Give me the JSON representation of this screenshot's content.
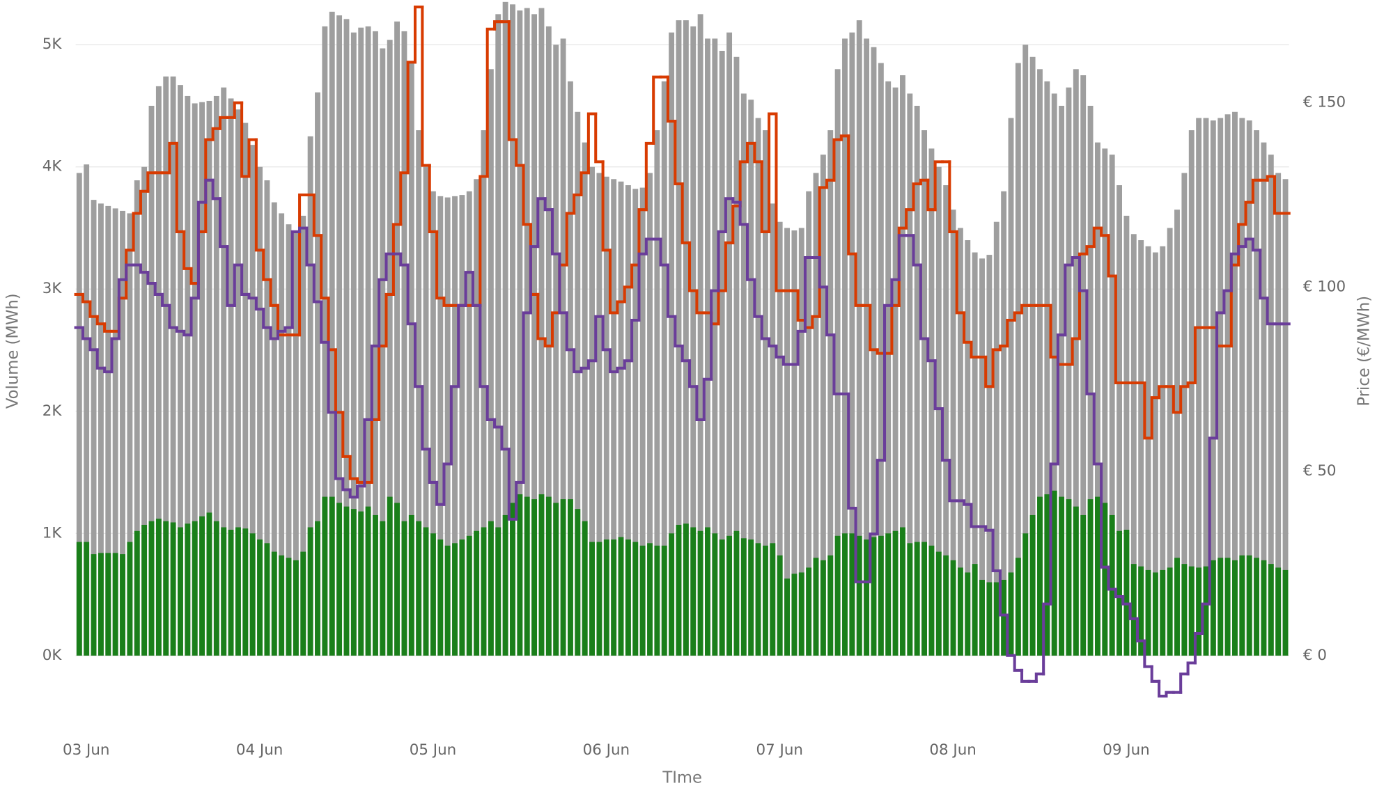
{
  "chart_data": {
    "type": "bar",
    "x_label": "TIme",
    "y_label": "Volume (MWh)",
    "y2_label": "Price (€/MWh)",
    "categories": [
      "03 Jun",
      null,
      null,
      null,
      null,
      null,
      null,
      null,
      null,
      null,
      null,
      null,
      null,
      null,
      null,
      null,
      null,
      null,
      null,
      null,
      null,
      null,
      null,
      null,
      "04 Jun",
      null,
      null,
      null,
      null,
      null,
      null,
      null,
      null,
      null,
      null,
      null,
      null,
      null,
      null,
      null,
      null,
      null,
      null,
      null,
      null,
      null,
      null,
      null,
      "05 Jun",
      null,
      null,
      null,
      null,
      null,
      null,
      null,
      null,
      null,
      null,
      null,
      null,
      null,
      null,
      null,
      null,
      null,
      null,
      null,
      null,
      null,
      null,
      null,
      "06 Jun",
      null,
      null,
      null,
      null,
      null,
      null,
      null,
      null,
      null,
      null,
      null,
      null,
      null,
      null,
      null,
      null,
      null,
      null,
      null,
      null,
      null,
      null,
      null,
      "07 Jun",
      null,
      null,
      null,
      null,
      null,
      null,
      null,
      null,
      null,
      null,
      null,
      null,
      null,
      null,
      null,
      null,
      null,
      null,
      null,
      null,
      null,
      null,
      null,
      "08 Jun",
      null,
      null,
      null,
      null,
      null,
      null,
      null,
      null,
      null,
      null,
      null,
      null,
      null,
      null,
      null,
      null,
      null,
      null,
      null,
      null,
      null,
      null,
      null,
      "09 Jun",
      null,
      null,
      null,
      null,
      null,
      null,
      null,
      null,
      null,
      null,
      null,
      null,
      null,
      null,
      null,
      null,
      null,
      null,
      null,
      null,
      null,
      null,
      null
    ],
    "ylim": [
      -380,
      5330
    ],
    "yticks": [
      {
        "value": 0,
        "label": "0K"
      },
      {
        "value": 1000,
        "label": "1K"
      },
      {
        "value": 2000,
        "label": "2K"
      },
      {
        "value": 3000,
        "label": "3K"
      },
      {
        "value": 4000,
        "label": "4K"
      },
      {
        "value": 5000,
        "label": "5K"
      }
    ],
    "y2lim": [
      -12.6,
      176.7
    ],
    "y2ticks": [
      {
        "value": 0,
        "label": "€ 0"
      },
      {
        "value": 50,
        "label": "€ 50"
      },
      {
        "value": 100,
        "label": "€ 100"
      },
      {
        "value": 150,
        "label": "€ 150"
      }
    ],
    "grid": true,
    "series": [
      {
        "type": "bar",
        "color": "#9e9e9e",
        "values": [
          3950,
          4020,
          3730,
          3700,
          3680,
          3660,
          3640,
          3620,
          3890,
          4000,
          4500,
          4660,
          4740,
          4740,
          4670,
          4580,
          4520,
          4530,
          4540,
          4580,
          4650,
          4560,
          4470,
          4360,
          4180,
          4000,
          3890,
          3710,
          3620,
          3530,
          3460,
          3600,
          4250,
          4610,
          5150,
          5270,
          5240,
          5210,
          5100,
          5140,
          5150,
          5110,
          4970,
          5040,
          5190,
          5110,
          4860,
          4300,
          4000,
          3800,
          3760,
          3750,
          3760,
          3770,
          3800,
          3900,
          4300,
          4800,
          5250,
          5350,
          5330,
          5280,
          5300,
          5250,
          5300,
          5150,
          5000,
          5050,
          4700,
          4450,
          4200,
          4000,
          3950,
          3920,
          3900,
          3880,
          3850,
          3820,
          3830,
          3950,
          4300,
          4700,
          5100,
          5200,
          5200,
          5150,
          5250,
          5050,
          5050,
          4950,
          5100,
          4900,
          4600,
          4550,
          4400,
          4300,
          3700,
          3550,
          3500,
          3480,
          3500,
          3800,
          3950,
          4100,
          4300,
          4800,
          5050,
          5100,
          5200,
          5050,
          4980,
          4850,
          4700,
          4650,
          4750,
          4600,
          4500,
          4300,
          4150,
          4000,
          3850,
          3650,
          3500,
          3400,
          3300,
          3250,
          3280,
          3550,
          3800,
          4400,
          4850,
          5000,
          4900,
          4800,
          4700,
          4600,
          4500,
          4650,
          4800,
          4750,
          4500,
          4200,
          4150,
          4100,
          3850,
          3600,
          3450,
          3400,
          3350,
          3300,
          3350,
          3500,
          3650,
          3950,
          4300,
          4400,
          4400,
          4380,
          4400,
          4430,
          4450,
          4400,
          4380,
          4300,
          4200,
          4100,
          3950,
          3900
        ]
      },
      {
        "type": "bar",
        "color": "#1a7f1a",
        "values": [
          930,
          930,
          830,
          840,
          840,
          840,
          830,
          930,
          1020,
          1070,
          1100,
          1120,
          1100,
          1090,
          1050,
          1080,
          1100,
          1140,
          1170,
          1100,
          1050,
          1030,
          1050,
          1040,
          1000,
          950,
          920,
          850,
          820,
          800,
          780,
          850,
          1050,
          1100,
          1300,
          1300,
          1250,
          1220,
          1200,
          1180,
          1220,
          1150,
          1100,
          1300,
          1250,
          1100,
          1150,
          1100,
          1050,
          1000,
          950,
          900,
          920,
          950,
          980,
          1020,
          1050,
          1100,
          1050,
          1150,
          1250,
          1320,
          1300,
          1280,
          1320,
          1300,
          1250,
          1280,
          1280,
          1200,
          1100,
          930,
          930,
          950,
          950,
          970,
          950,
          930,
          900,
          920,
          900,
          900,
          1000,
          1070,
          1080,
          1050,
          1020,
          1050,
          1000,
          950,
          980,
          1020,
          960,
          950,
          920,
          900,
          920,
          820,
          630,
          670,
          680,
          720,
          800,
          780,
          820,
          980,
          1000,
          1000,
          980,
          950,
          970,
          980,
          1000,
          1020,
          1050,
          920,
          930,
          930,
          900,
          850,
          820,
          780,
          720,
          680,
          750,
          620,
          600,
          600,
          620,
          680,
          800,
          1000,
          1150,
          1300,
          1320,
          1350,
          1300,
          1280,
          1220,
          1150,
          1280,
          1300,
          1250,
          1150,
          1020,
          1030,
          750,
          730,
          700,
          680,
          700,
          720,
          800,
          750,
          730,
          720,
          730,
          780,
          800,
          800,
          780,
          820,
          820,
          800,
          780,
          750,
          720,
          700
        ]
      },
      {
        "type": "line",
        "axis": "y2",
        "color": "#d83b01",
        "values": [
          98,
          96,
          92,
          90,
          88,
          88,
          97,
          110,
          120,
          126,
          131,
          131,
          131,
          139,
          115,
          105,
          101,
          115,
          140,
          143,
          146,
          146,
          150,
          130,
          140,
          110,
          102,
          95,
          87,
          87,
          87,
          125,
          125,
          114,
          97,
          83,
          66,
          54,
          48,
          47,
          47,
          64,
          84,
          98,
          117,
          131,
          161,
          176,
          133,
          115,
          97,
          95,
          95,
          95,
          95,
          95,
          130,
          170,
          172,
          172,
          140,
          133,
          117,
          98,
          86,
          84,
          93,
          106,
          120,
          125,
          131,
          147,
          134,
          110,
          93,
          96,
          100,
          106,
          121,
          139,
          157,
          157,
          145,
          128,
          112,
          99,
          93,
          93,
          90,
          99,
          112,
          122,
          134,
          139,
          134,
          115,
          147,
          99,
          99,
          99,
          91,
          89,
          92,
          127,
          129,
          140,
          141,
          109,
          95,
          95,
          83,
          82,
          82,
          95,
          116,
          121,
          128,
          129,
          121,
          134,
          134,
          115,
          93,
          85,
          81,
          81,
          73,
          83,
          84,
          91,
          93,
          95,
          95,
          95,
          95,
          81,
          79,
          79,
          86,
          109,
          111,
          116,
          114,
          103,
          74,
          74,
          74,
          74,
          59,
          70,
          73,
          73,
          66,
          73,
          74,
          89,
          89,
          89,
          84,
          84,
          106,
          117,
          123,
          129,
          129,
          130,
          120,
          120
        ]
      },
      {
        "type": "line",
        "axis": "y2",
        "color": "#6a3d9a",
        "values": [
          89,
          86,
          83,
          78,
          77,
          86,
          102,
          106,
          106,
          104,
          101,
          98,
          95,
          89,
          88,
          87,
          97,
          123,
          129,
          124,
          111,
          95,
          106,
          98,
          97,
          94,
          89,
          86,
          88,
          89,
          115,
          116,
          106,
          96,
          85,
          66,
          48,
          45,
          43,
          46,
          64,
          84,
          102,
          109,
          109,
          106,
          90,
          73,
          56,
          47,
          41,
          52,
          73,
          95,
          104,
          95,
          73,
          64,
          62,
          56,
          37,
          47,
          93,
          111,
          124,
          121,
          109,
          93,
          83,
          77,
          78,
          80,
          92,
          83,
          77,
          78,
          80,
          91,
          109,
          113,
          113,
          106,
          92,
          84,
          80,
          73,
          64,
          75,
          99,
          115,
          124,
          123,
          117,
          102,
          92,
          86,
          84,
          81,
          79,
          79,
          88,
          108,
          108,
          100,
          87,
          71,
          71,
          40,
          20,
          20,
          33,
          53,
          95,
          102,
          114,
          114,
          106,
          86,
          80,
          67,
          53,
          42,
          42,
          41,
          35,
          35,
          34,
          23,
          11,
          0,
          -4,
          -7,
          -7,
          -5,
          14,
          52,
          87,
          106,
          108,
          99,
          71,
          52,
          24,
          18,
          16,
          14,
          10,
          4,
          -3,
          -7,
          -11,
          -10,
          -10,
          -5,
          -2,
          6,
          14,
          59,
          93,
          99,
          109,
          111,
          113,
          110,
          97,
          90,
          90,
          90
        ]
      }
    ]
  }
}
